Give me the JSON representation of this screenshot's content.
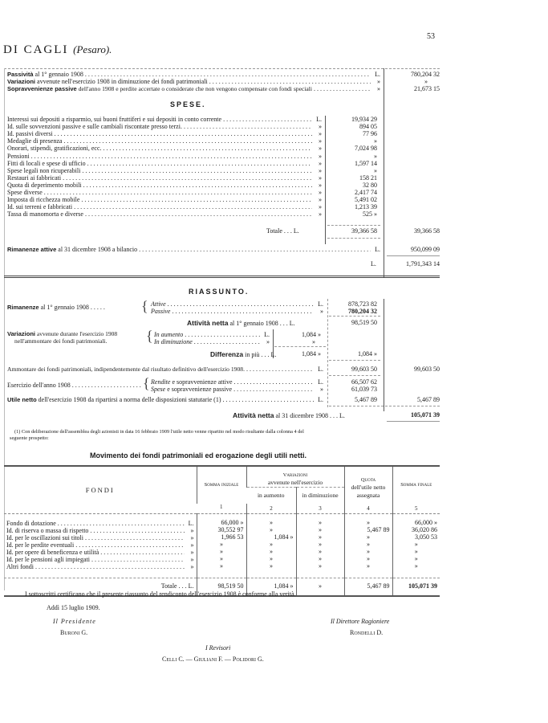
{
  "header": {
    "page_number": "53",
    "title": "DI CAGLI",
    "title_suffix": "(Pesaro)."
  },
  "passivita": [
    {
      "bold": "Passività",
      "text": "al 1° gennaio 1908",
      "unit": "L.",
      "value": "780,204 32"
    },
    {
      "bold": "Variazioni",
      "text": "avvenute nell'esercizio 1908 in diminuzione dei fondi patrimoniali",
      "unit": "»",
      "value": "»"
    },
    {
      "bold": "Sopravvenienze passive",
      "text": "dell'anno 1908 e perdite accertate o considerate che non vengono compensate con fondi speciali",
      "unit": "»",
      "value": "21,673 15"
    }
  ],
  "spese": {
    "heading": "SPESE.",
    "rows": [
      {
        "label": "Interessi sui depositi a risparmio, sui buoni fruttiferi e sui depositi in conto corrente",
        "unit": "L.",
        "value": "19,934 29"
      },
      {
        "label": "Id.    sulle sovvenzioni passive e sulle cambiali riscontate presso terzi.",
        "unit": "»",
        "value": "894 05"
      },
      {
        "label": "Id.    passivi diversi",
        "unit": "»",
        "value": "77 96"
      },
      {
        "label": "Medaglie di presenza",
        "unit": "»",
        "value": "»"
      },
      {
        "label": "Onorari, stipendi, gratificazioni, ecc.",
        "unit": "»",
        "value": "7,024 98"
      },
      {
        "label": "Pensioni",
        "unit": "»",
        "value": "»"
      },
      {
        "label": "Fitti di locali e spese di ufficio",
        "unit": "»",
        "value": "1,597 14"
      },
      {
        "label": "Spese legali non ricuperabili",
        "unit": "»",
        "value": "»"
      },
      {
        "label": "Restauri ai fabbricati",
        "unit": "»",
        "value": "158 21"
      },
      {
        "label": "Quota di deperimento mobili",
        "unit": "»",
        "value": "32 80"
      },
      {
        "label": "Spese diverse",
        "unit": "»",
        "value": "2,417 74"
      },
      {
        "label": "Imposta di ricchezza mobile",
        "unit": "»",
        "value": "5,491 02"
      },
      {
        "label": "Id.    sui terreni e fabbricati",
        "unit": "»",
        "value": "1,213 39"
      },
      {
        "label": "Tassa di manomorta e diverse",
        "unit": "»",
        "value": "525 »"
      }
    ],
    "total_label": "Totale . . . L.",
    "total": "39,366 58",
    "total_carried": "39,366 58"
  },
  "rimanenze_attive": {
    "bold": "Rimanenze attive",
    "text": "al 31 dicembre 1908 a bilancio",
    "unit": "L.",
    "value": "950,099 09"
  },
  "grand_total": {
    "unit": "L.",
    "value": "1,791,343 14"
  },
  "riassunto": {
    "heading": "RIASSUNTO.",
    "rimanenze": {
      "bold": "Rimanenze",
      "text": "al 1° gennaio 1908 . . . . .",
      "attive_label": "Attive",
      "attive_unit": "L.",
      "attive": "878,723 82",
      "passive_label": "Passive",
      "passive_unit": "»",
      "passive": "780,204 32"
    },
    "attivita_netta_1": {
      "bold": "Attività netta",
      "text": "al 1° gennaio 1908 . . . L.",
      "value": "98,519 50"
    },
    "variazioni": {
      "bold": "Variazioni",
      "text": "avvenute durante l'esercizio 1908",
      "text2": "nell'ammontare dei fondi patrimoniali.",
      "aumento_label": "In aumento",
      "aumento_unit": "L.",
      "aumento": "1,084 »",
      "diminuzione_label": "In diminuzione",
      "diminuzione_unit": "»",
      "diminuzione": "»"
    },
    "differenza": {
      "bold": "Differenza",
      "text": "in più . . . L.",
      "value": "1,084 »",
      "value2": "1,084 »"
    },
    "ammontare": {
      "text": "Ammontare dei fondi patrimoniali, indipendentemente dal risultato definitivo dell'esercizio 1908.",
      "unit": "L.",
      "value": "99,603 50",
      "value2": "99,603 50"
    },
    "esercizio": {
      "text": "Esercizio dell'anno 1908",
      "rendite_it": "Rendite",
      "rendite_text": "e sopravvenienze attive",
      "rendite_unit": "L.",
      "rendite": "66,507 62",
      "spese_it": "Spese",
      "spese_text": "e sopravvenienze passive",
      "spese_unit": "»",
      "spese": "61,039 73"
    },
    "utile": {
      "bold": "Utile netto",
      "text": "dell'esercizio 1908 da ripartirsi a norma delle disposizioni statutarie (1)",
      "unit": "L.",
      "value": "5,467 89",
      "value2": "5,467 89"
    },
    "attivita_netta_31": {
      "bold": "Attività netta",
      "text": "al 31 dicembre 1908 . . . L.",
      "value": "105,071 39"
    },
    "footnote": "(1) Con deliberazione dell'assemblea degli azionisti in data 16 febbraio 1909 l'utile netto venne ripartito nel modo risultante dalla colonna 4 del",
    "footnote2": "seguente prospetto:"
  },
  "movimento": {
    "title": "Movimento dei fondi patrimoniali ed erogazione degli utili netti.",
    "headers": {
      "fondi": "FONDI",
      "somma_iniziale": "Somma iniziale",
      "variazioni": "Variazioni",
      "variazioni2": "avvenute nell'esercizio",
      "in_aumento": "in aumento",
      "in_diminuzione": "in diminuzione",
      "quota": "Quota",
      "quota2": "dell'utile netto",
      "quota3": "assegnata",
      "somma_finale": "Somma finale",
      "n1": "1",
      "n2": "2",
      "n3": "3",
      "n4": "4",
      "n5": "5"
    },
    "rows": [
      {
        "label": "Fondo di dotazione",
        "unit": "L.",
        "c1": "66,000 »",
        "c2": "»",
        "c3": "»",
        "c4": "»",
        "c5": "66,000 »"
      },
      {
        "label": "Id.   di riserva o massa di rispetto",
        "unit": "»",
        "c1": "30,552 97",
        "c2": "»",
        "c3": "»",
        "c4": "5,467 89",
        "c5": "36,020 86"
      },
      {
        "label": "Id.   per le oscillazioni sui titoli",
        "unit": "»",
        "c1": "1,966 53",
        "c2": "1,084 »",
        "c3": "»",
        "c4": "»",
        "c5": "3,050 53"
      },
      {
        "label": "Id.   per le perdite eventuali",
        "unit": "»",
        "c1": "»",
        "c2": "»",
        "c3": "»",
        "c4": "»",
        "c5": "»"
      },
      {
        "label": "Id.   per opere di beneficenza e utilità",
        "unit": "»",
        "c1": "»",
        "c2": "»",
        "c3": "»",
        "c4": "»",
        "c5": "»"
      },
      {
        "label": "Id.   per le pensioni agli impiegati",
        "unit": "»",
        "c1": "»",
        "c2": "»",
        "c3": "»",
        "c4": "»",
        "c5": "»"
      },
      {
        "label": "Altri fondi",
        "unit": "»",
        "c1": "»",
        "c2": "»",
        "c3": "»",
        "c4": "»",
        "c5": "»"
      }
    ],
    "total": {
      "label": "Totale . . . L.",
      "c1": "98,519 50",
      "c2": "1,084 »",
      "c3": "»",
      "c4": "5,467 89",
      "c5": "105,071 39"
    }
  },
  "certification": {
    "text": "I sottoscritti certificano che il presente riassunto del rendiconto dell'esercizio 1908 è conforme alla verità.",
    "date": "Addì 15 luglio 1909.",
    "presidente_title": "Il Presidente",
    "presidente": "Buroni G.",
    "direttore_title": "Il Direttore Ragioniere",
    "direttore": "Rondelli D.",
    "revisori_title": "I Revisori",
    "revisori": "Celli C. — Giuliani F. — Polidori G."
  }
}
